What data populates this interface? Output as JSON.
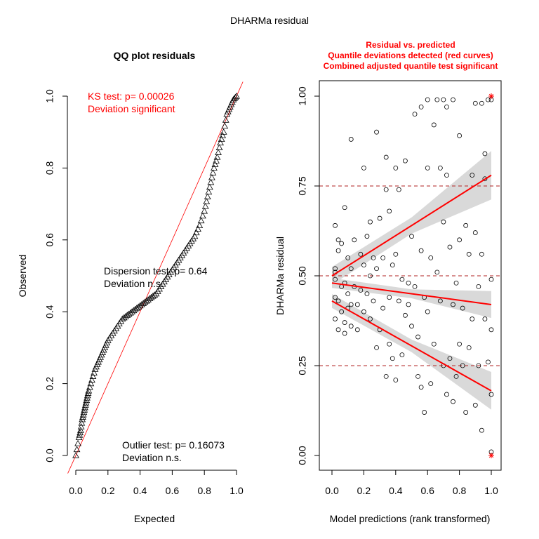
{
  "figure": {
    "title": "DHARMa residual"
  },
  "chart_data": [
    {
      "type": "scatter",
      "panel": "left",
      "title": "QQ plot residuals",
      "xlabel": "Expected",
      "ylabel": "Observed",
      "xlim": [
        0,
        1
      ],
      "ylim": [
        0,
        1
      ],
      "x_ticks": [
        "0.0",
        "0.2",
        "0.4",
        "0.6",
        "0.8",
        "1.0"
      ],
      "y_ticks": [
        "0.0",
        "0.2",
        "0.4",
        "0.6",
        "0.8",
        "1.0"
      ],
      "reference_line": "y = x",
      "marker": "triangle",
      "quantiles": [
        [
          0.0,
          0.0
        ],
        [
          0.02,
          0.05
        ],
        [
          0.03,
          0.07
        ],
        [
          0.04,
          0.1
        ],
        [
          0.05,
          0.12
        ],
        [
          0.06,
          0.14
        ],
        [
          0.07,
          0.16
        ],
        [
          0.08,
          0.18
        ],
        [
          0.1,
          0.21
        ],
        [
          0.12,
          0.24
        ],
        [
          0.14,
          0.26
        ],
        [
          0.16,
          0.28
        ],
        [
          0.18,
          0.3
        ],
        [
          0.2,
          0.32
        ],
        [
          0.23,
          0.34
        ],
        [
          0.26,
          0.36
        ],
        [
          0.29,
          0.38
        ],
        [
          0.32,
          0.39
        ],
        [
          0.35,
          0.4
        ],
        [
          0.38,
          0.41
        ],
        [
          0.41,
          0.42
        ],
        [
          0.44,
          0.43
        ],
        [
          0.47,
          0.44
        ],
        [
          0.5,
          0.45
        ],
        [
          0.53,
          0.47
        ],
        [
          0.56,
          0.49
        ],
        [
          0.59,
          0.51
        ],
        [
          0.62,
          0.53
        ],
        [
          0.65,
          0.55
        ],
        [
          0.68,
          0.57
        ],
        [
          0.71,
          0.59
        ],
        [
          0.74,
          0.61
        ],
        [
          0.77,
          0.64
        ],
        [
          0.8,
          0.68
        ],
        [
          0.82,
          0.72
        ],
        [
          0.84,
          0.76
        ],
        [
          0.86,
          0.8
        ],
        [
          0.88,
          0.83
        ],
        [
          0.9,
          0.87
        ],
        [
          0.92,
          0.9
        ],
        [
          0.94,
          0.95
        ],
        [
          0.96,
          0.97
        ],
        [
          0.98,
          0.99
        ],
        [
          1.0,
          1.0
        ]
      ],
      "annotations": [
        {
          "lines": [
            "KS test: p= 0.00026",
            "Deviation  significant"
          ],
          "color": "#ff0000"
        },
        {
          "lines": [
            "Dispersion test: p= 0.64",
            "Deviation  n.s."
          ],
          "color": "#000000"
        },
        {
          "lines": [
            "Outlier test: p= 0.16073",
            "Deviation  n.s."
          ],
          "color": "#000000"
        }
      ]
    },
    {
      "type": "scatter",
      "panel": "right",
      "title_lines": [
        "Residual vs. predicted",
        "Quantile deviations detected (red curves)",
        "Combined adjusted quantile test significant"
      ],
      "title_color": "#ff0000",
      "xlabel": "Model predictions (rank transformed)",
      "ylabel": "DHARMa residual",
      "xlim": [
        0,
        1
      ],
      "ylim": [
        0,
        1
      ],
      "x_ticks": [
        "0.0",
        "0.2",
        "0.4",
        "0.6",
        "0.8",
        "1.0"
      ],
      "y_ticks": [
        "0.00",
        "0.25",
        "0.50",
        "0.75",
        "1.00"
      ],
      "reference_lines": [
        0.25,
        0.5,
        0.75
      ],
      "marker": "circle",
      "points": [
        [
          0.02,
          0.64
        ],
        [
          0.02,
          0.52
        ],
        [
          0.02,
          0.51
        ],
        [
          0.02,
          0.49
        ],
        [
          0.02,
          0.44
        ],
        [
          0.02,
          0.38
        ],
        [
          0.04,
          0.6
        ],
        [
          0.04,
          0.57
        ],
        [
          0.04,
          0.43
        ],
        [
          0.04,
          0.35
        ],
        [
          0.06,
          0.59
        ],
        [
          0.06,
          0.47
        ],
        [
          0.06,
          0.4
        ],
        [
          0.08,
          0.69
        ],
        [
          0.08,
          0.48
        ],
        [
          0.08,
          0.37
        ],
        [
          0.08,
          0.34
        ],
        [
          0.1,
          0.55
        ],
        [
          0.1,
          0.45
        ],
        [
          0.1,
          0.41
        ],
        [
          0.12,
          0.88
        ],
        [
          0.12,
          0.52
        ],
        [
          0.12,
          0.42
        ],
        [
          0.12,
          0.36
        ],
        [
          0.14,
          0.6
        ],
        [
          0.14,
          0.47
        ],
        [
          0.16,
          0.42
        ],
        [
          0.16,
          0.35
        ],
        [
          0.18,
          0.56
        ],
        [
          0.18,
          0.46
        ],
        [
          0.2,
          0.8
        ],
        [
          0.2,
          0.53
        ],
        [
          0.2,
          0.4
        ],
        [
          0.22,
          0.61
        ],
        [
          0.22,
          0.45
        ],
        [
          0.24,
          0.65
        ],
        [
          0.24,
          0.5
        ],
        [
          0.24,
          0.38
        ],
        [
          0.26,
          0.55
        ],
        [
          0.26,
          0.43
        ],
        [
          0.28,
          0.9
        ],
        [
          0.28,
          0.52
        ],
        [
          0.28,
          0.3
        ],
        [
          0.3,
          0.66
        ],
        [
          0.3,
          0.35
        ],
        [
          0.32,
          0.55
        ],
        [
          0.32,
          0.41
        ],
        [
          0.34,
          0.83
        ],
        [
          0.34,
          0.74
        ],
        [
          0.34,
          0.22
        ],
        [
          0.36,
          0.68
        ],
        [
          0.36,
          0.44
        ],
        [
          0.36,
          0.31
        ],
        [
          0.38,
          0.53
        ],
        [
          0.38,
          0.27
        ],
        [
          0.4,
          0.8
        ],
        [
          0.4,
          0.56
        ],
        [
          0.4,
          0.21
        ],
        [
          0.42,
          0.74
        ],
        [
          0.42,
          0.43
        ],
        [
          0.44,
          0.49
        ],
        [
          0.44,
          0.28
        ],
        [
          0.46,
          0.82
        ],
        [
          0.46,
          0.39
        ],
        [
          0.48,
          0.48
        ],
        [
          0.48,
          0.42
        ],
        [
          0.5,
          0.61
        ],
        [
          0.5,
          0.36
        ],
        [
          0.52,
          0.95
        ],
        [
          0.52,
          0.47
        ],
        [
          0.54,
          0.33
        ],
        [
          0.54,
          0.22
        ],
        [
          0.56,
          0.97
        ],
        [
          0.56,
          0.57
        ],
        [
          0.56,
          0.19
        ],
        [
          0.58,
          0.44
        ],
        [
          0.58,
          0.12
        ],
        [
          0.6,
          0.99
        ],
        [
          0.6,
          0.8
        ],
        [
          0.6,
          0.4
        ],
        [
          0.62,
          0.55
        ],
        [
          0.62,
          0.2
        ],
        [
          0.64,
          0.92
        ],
        [
          0.64,
          0.31
        ],
        [
          0.66,
          0.99
        ],
        [
          0.66,
          0.51
        ],
        [
          0.68,
          0.8
        ],
        [
          0.68,
          0.43
        ],
        [
          0.7,
          0.99
        ],
        [
          0.7,
          0.65
        ],
        [
          0.7,
          0.25
        ],
        [
          0.72,
          0.97
        ],
        [
          0.72,
          0.78
        ],
        [
          0.72,
          0.17
        ],
        [
          0.74,
          0.58
        ],
        [
          0.74,
          0.27
        ],
        [
          0.76,
          0.99
        ],
        [
          0.76,
          0.42
        ],
        [
          0.76,
          0.15
        ],
        [
          0.78,
          0.48
        ],
        [
          0.78,
          0.22
        ],
        [
          0.8,
          0.89
        ],
        [
          0.8,
          0.6
        ],
        [
          0.8,
          0.31
        ],
        [
          0.82,
          0.41
        ],
        [
          0.82,
          0.25
        ],
        [
          0.84,
          0.64
        ],
        [
          0.84,
          0.12
        ],
        [
          0.86,
          0.56
        ],
        [
          0.86,
          0.3
        ],
        [
          0.88,
          0.78
        ],
        [
          0.88,
          0.38
        ],
        [
          0.9,
          0.98
        ],
        [
          0.9,
          0.62
        ],
        [
          0.9,
          0.14
        ],
        [
          0.92,
          0.47
        ],
        [
          0.92,
          0.25
        ],
        [
          0.94,
          0.98
        ],
        [
          0.94,
          0.56
        ],
        [
          0.94,
          0.07
        ],
        [
          0.96,
          0.84
        ],
        [
          0.96,
          0.38
        ],
        [
          0.98,
          0.99
        ],
        [
          0.98,
          0.26
        ],
        [
          1.0,
          0.99
        ],
        [
          1.0,
          0.49
        ],
        [
          1.0,
          0.35
        ],
        [
          1.0,
          0.17
        ],
        [
          1.0,
          0.01
        ],
        [
          0.96,
          0.77
        ]
      ],
      "outliers": [
        [
          1.0,
          1.0
        ],
        [
          1.0,
          0.0
        ]
      ],
      "quantile_curves": [
        {
          "quantile": 0.25,
          "from": [
            0.0,
            0.43
          ],
          "to": [
            1.0,
            0.18
          ],
          "band_halfwidth": 0.035
        },
        {
          "quantile": 0.5,
          "from": [
            0.0,
            0.48
          ],
          "to": [
            1.0,
            0.42
          ],
          "band_halfwidth": 0.025
        },
        {
          "quantile": 0.75,
          "from": [
            0.0,
            0.5
          ],
          "to": [
            1.0,
            0.78
          ],
          "band_halfwidth": 0.045
        }
      ]
    }
  ]
}
